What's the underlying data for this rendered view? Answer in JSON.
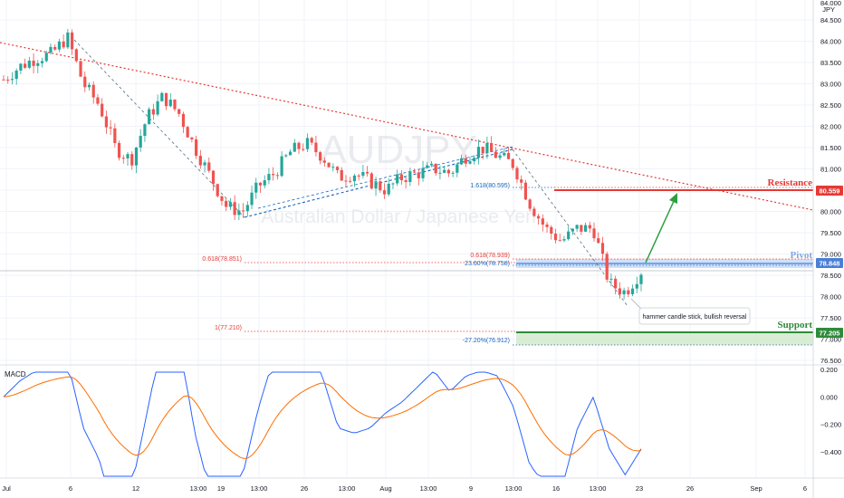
{
  "chart_data": {
    "type": "candlestick",
    "symbol": "AUDJPY",
    "instrument": "Australian Dollar / Japanese Yen",
    "currency": "JPY",
    "price_ticks": [
      84.5,
      84.0,
      83.5,
      83.0,
      82.5,
      82.0,
      81.5,
      81.0,
      80.5,
      80.0,
      79.5,
      79.0,
      78.5,
      78.0,
      77.5,
      77.0,
      76.5
    ],
    "price_tick_labels": [
      "84.500",
      "84.000",
      "83.500",
      "83.000",
      "82.500",
      "82.000",
      "81.500",
      "81.000",
      "80.500",
      "80.000",
      "79.500",
      "79.000",
      "78.500",
      "78.000",
      "77.500",
      "77.000",
      "76.500"
    ],
    "top_partial_label": "84.000",
    "time_labels": [
      "Jul",
      "6",
      "12",
      "13:00",
      "19",
      "13:00",
      "26",
      "13:00",
      "Aug",
      "13:00",
      "9",
      "13:00",
      "16",
      "13:00",
      "23",
      "26",
      "Sep",
      "6"
    ],
    "price_tags": {
      "resistance": {
        "label": "80.559",
        "value": 80.559,
        "color": "#e53935"
      },
      "pivot": {
        "label": "78.848",
        "value": 78.848,
        "color": "#4a7fd6"
      },
      "support": {
        "label": "77.205",
        "value": 77.205,
        "color": "#2e8b3a"
      }
    },
    "levels": {
      "resistance_title": "Resistance",
      "pivot_title": "Pivot",
      "support_title": "Support"
    },
    "fib_labels": {
      "f1618": "1.618(80.595)",
      "f0618_left": "0.618(78.851)",
      "f0618_right": "0.618(78.939)",
      "f2360": "23.60%(78.758)",
      "f1": "1(77.210)",
      "fneg2720": "-27.20%(76.912)"
    },
    "annotation": "hammer candle stick, bullish reversal",
    "macd": {
      "label": "MACD",
      "ticks": [
        0.2,
        0.0,
        -0.2,
        -0.4,
        -0.6
      ],
      "tick_labels": [
        "0.200",
        "0.000",
        "−0.200",
        "−0.400",
        "−0.600"
      ],
      "macd_color": "#2962ff",
      "signal_color": "#ff6d00"
    },
    "colors": {
      "up": "#26a69a",
      "down": "#ef5350",
      "trendline": "#e53935",
      "fib_red": "#e57373",
      "fib_blue": "#1565c0",
      "arrow": "#2e9e3e"
    },
    "ohlc_close_path": [
      83.1,
      83.4,
      83.6,
      83.7,
      84.1,
      83.0,
      82.5,
      81.5,
      81.2,
      82.2,
      82.7,
      82.3,
      81.5,
      80.8,
      80.1,
      80.0,
      80.6,
      80.9,
      81.4,
      81.6,
      81.3,
      80.8,
      80.9,
      80.7,
      80.5,
      80.8,
      80.9,
      81.0,
      80.9,
      81.3,
      81.5,
      81.3,
      81.1,
      80.2,
      79.6,
      79.3,
      79.6,
      79.6,
      78.3,
      78.1,
      78.6
    ]
  }
}
